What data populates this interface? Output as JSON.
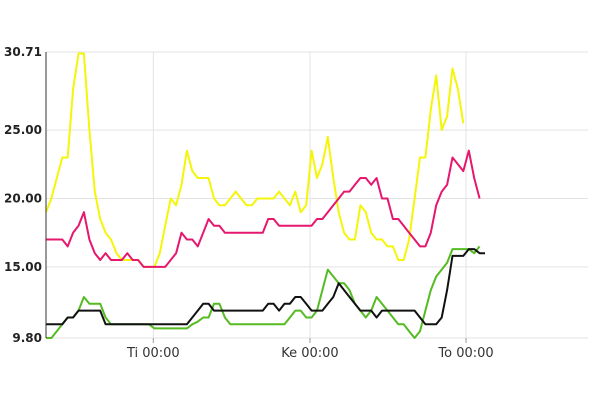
{
  "chart_data": {
    "type": "line",
    "grid": true,
    "ylim": [
      9.8,
      30.71
    ],
    "y_ticks": [
      "30.71",
      "25.00",
      "20.00",
      "15.00",
      "9.80"
    ],
    "y_tick_values": [
      30.71,
      25.0,
      20.0,
      15.0,
      9.8
    ],
    "xlim": [
      0,
      100
    ],
    "x_ticks": [
      {
        "label": "Ti 00:00",
        "x": 19.8
      },
      {
        "label": "Ke 00:00",
        "x": 48.7
      },
      {
        "label": "To 00:00",
        "x": 77.5
      }
    ],
    "series": [
      {
        "color": "#f5f50a",
        "points": [
          [
            0,
            19
          ],
          [
            1,
            20
          ],
          [
            2,
            21.5
          ],
          [
            3,
            23
          ],
          [
            4,
            23
          ],
          [
            5,
            28
          ],
          [
            6,
            30.6
          ],
          [
            7,
            30.6
          ],
          [
            8,
            25
          ],
          [
            9,
            20.5
          ],
          [
            10,
            18.5
          ],
          [
            11,
            17.5
          ],
          [
            12,
            17
          ],
          [
            13,
            16
          ],
          [
            14,
            15.5
          ],
          [
            15,
            15.5
          ],
          [
            16,
            15.5
          ],
          [
            17,
            15.5
          ],
          [
            18,
            15
          ],
          [
            19,
            15
          ],
          [
            20,
            15
          ],
          [
            21,
            16
          ],
          [
            22,
            18
          ],
          [
            23,
            20
          ],
          [
            24,
            19.5
          ],
          [
            25,
            21
          ],
          [
            26,
            23.5
          ],
          [
            27,
            22
          ],
          [
            28,
            21.5
          ],
          [
            29,
            21.5
          ],
          [
            30,
            21.5
          ],
          [
            31,
            20
          ],
          [
            32,
            19.5
          ],
          [
            33,
            19.5
          ],
          [
            34,
            20
          ],
          [
            35,
            20.5
          ],
          [
            36,
            20
          ],
          [
            37,
            19.5
          ],
          [
            38,
            19.5
          ],
          [
            39,
            20
          ],
          [
            40,
            20
          ],
          [
            41,
            20
          ],
          [
            42,
            20
          ],
          [
            43,
            20.5
          ],
          [
            44,
            20
          ],
          [
            45,
            19.5
          ],
          [
            46,
            20.5
          ],
          [
            47,
            19
          ],
          [
            48,
            19.5
          ],
          [
            49,
            23.5
          ],
          [
            50,
            21.5
          ],
          [
            51,
            22.5
          ],
          [
            52,
            24.5
          ],
          [
            53,
            21.5
          ],
          [
            54,
            19
          ],
          [
            55,
            17.5
          ],
          [
            56,
            17
          ],
          [
            57,
            17
          ],
          [
            58,
            19.5
          ],
          [
            59,
            19
          ],
          [
            60,
            17.5
          ],
          [
            61,
            17
          ],
          [
            62,
            17
          ],
          [
            63,
            16.5
          ],
          [
            64,
            16.5
          ],
          [
            65,
            15.5
          ],
          [
            66,
            15.5
          ],
          [
            67,
            17
          ],
          [
            68,
            20
          ],
          [
            69,
            23
          ],
          [
            70,
            23
          ],
          [
            71,
            26.5
          ],
          [
            72,
            29
          ],
          [
            73,
            25
          ],
          [
            74,
            26
          ],
          [
            75,
            29.5
          ],
          [
            76,
            28
          ],
          [
            77,
            25.5
          ]
        ]
      },
      {
        "color": "#e6176e",
        "points": [
          [
            0,
            17
          ],
          [
            1,
            17
          ],
          [
            2,
            17
          ],
          [
            3,
            17
          ],
          [
            4,
            16.5
          ],
          [
            5,
            17.5
          ],
          [
            6,
            18
          ],
          [
            7,
            19
          ],
          [
            8,
            17
          ],
          [
            9,
            16
          ],
          [
            10,
            15.5
          ],
          [
            11,
            16
          ],
          [
            12,
            15.5
          ],
          [
            13,
            15.5
          ],
          [
            14,
            15.5
          ],
          [
            15,
            16
          ],
          [
            16,
            15.5
          ],
          [
            17,
            15.5
          ],
          [
            18,
            15
          ],
          [
            19,
            15
          ],
          [
            20,
            15
          ],
          [
            21,
            15
          ],
          [
            22,
            15
          ],
          [
            23,
            15.5
          ],
          [
            24,
            16
          ],
          [
            25,
            17.5
          ],
          [
            26,
            17
          ],
          [
            27,
            17
          ],
          [
            28,
            16.5
          ],
          [
            29,
            17.5
          ],
          [
            30,
            18.5
          ],
          [
            31,
            18
          ],
          [
            32,
            18
          ],
          [
            33,
            17.5
          ],
          [
            34,
            17.5
          ],
          [
            35,
            17.5
          ],
          [
            36,
            17.5
          ],
          [
            37,
            17.5
          ],
          [
            38,
            17.5
          ],
          [
            39,
            17.5
          ],
          [
            40,
            17.5
          ],
          [
            41,
            18.5
          ],
          [
            42,
            18.5
          ],
          [
            43,
            18
          ],
          [
            44,
            18
          ],
          [
            45,
            18
          ],
          [
            46,
            18
          ],
          [
            47,
            18
          ],
          [
            48,
            18
          ],
          [
            49,
            18
          ],
          [
            50,
            18.5
          ],
          [
            51,
            18.5
          ],
          [
            52,
            19
          ],
          [
            53,
            19.5
          ],
          [
            54,
            20
          ],
          [
            55,
            20.5
          ],
          [
            56,
            20.5
          ],
          [
            57,
            21
          ],
          [
            58,
            21.5
          ],
          [
            59,
            21.5
          ],
          [
            60,
            21
          ],
          [
            61,
            21.5
          ],
          [
            62,
            20
          ],
          [
            63,
            20
          ],
          [
            64,
            18.5
          ],
          [
            65,
            18.5
          ],
          [
            66,
            18
          ],
          [
            67,
            17.5
          ],
          [
            68,
            17
          ],
          [
            69,
            16.5
          ],
          [
            70,
            16.5
          ],
          [
            71,
            17.5
          ],
          [
            72,
            19.5
          ],
          [
            73,
            20.5
          ],
          [
            74,
            21
          ],
          [
            75,
            23
          ],
          [
            76,
            22.5
          ],
          [
            77,
            22
          ],
          [
            78,
            23.5
          ],
          [
            79,
            21.5
          ],
          [
            80,
            20
          ]
        ]
      },
      {
        "color": "#55bb22",
        "points": [
          [
            0,
            9.8
          ],
          [
            1,
            9.8
          ],
          [
            2,
            10.3
          ],
          [
            3,
            10.8
          ],
          [
            4,
            11.3
          ],
          [
            5,
            11.3
          ],
          [
            6,
            11.8
          ],
          [
            7,
            12.8
          ],
          [
            8,
            12.3
          ],
          [
            9,
            12.3
          ],
          [
            10,
            12.3
          ],
          [
            11,
            11.3
          ],
          [
            12,
            10.8
          ],
          [
            13,
            10.8
          ],
          [
            14,
            10.8
          ],
          [
            15,
            10.8
          ],
          [
            16,
            10.8
          ],
          [
            17,
            10.8
          ],
          [
            18,
            10.8
          ],
          [
            19,
            10.8
          ],
          [
            20,
            10.5
          ],
          [
            21,
            10.5
          ],
          [
            22,
            10.5
          ],
          [
            23,
            10.5
          ],
          [
            24,
            10.5
          ],
          [
            25,
            10.5
          ],
          [
            26,
            10.5
          ],
          [
            27,
            10.8
          ],
          [
            28,
            11
          ],
          [
            29,
            11.3
          ],
          [
            30,
            11.3
          ],
          [
            31,
            12.3
          ],
          [
            32,
            12.3
          ],
          [
            33,
            11.3
          ],
          [
            34,
            10.8
          ],
          [
            35,
            10.8
          ],
          [
            36,
            10.8
          ],
          [
            37,
            10.8
          ],
          [
            38,
            10.8
          ],
          [
            39,
            10.8
          ],
          [
            40,
            10.8
          ],
          [
            41,
            10.8
          ],
          [
            42,
            10.8
          ],
          [
            43,
            10.8
          ],
          [
            44,
            10.8
          ],
          [
            45,
            11.3
          ],
          [
            46,
            11.8
          ],
          [
            47,
            11.8
          ],
          [
            48,
            11.3
          ],
          [
            49,
            11.3
          ],
          [
            50,
            11.8
          ],
          [
            51,
            13.3
          ],
          [
            52,
            14.8
          ],
          [
            53,
            14.3
          ],
          [
            54,
            13.8
          ],
          [
            55,
            13.8
          ],
          [
            56,
            13.3
          ],
          [
            57,
            12.3
          ],
          [
            58,
            11.8
          ],
          [
            59,
            11.3
          ],
          [
            60,
            11.8
          ],
          [
            61,
            12.8
          ],
          [
            62,
            12.3
          ],
          [
            63,
            11.8
          ],
          [
            64,
            11.3
          ],
          [
            65,
            10.8
          ],
          [
            66,
            10.8
          ],
          [
            67,
            10.3
          ],
          [
            68,
            9.8
          ],
          [
            69,
            10.3
          ],
          [
            70,
            11.8
          ],
          [
            71,
            13.3
          ],
          [
            72,
            14.3
          ],
          [
            73,
            14.8
          ],
          [
            74,
            15.3
          ],
          [
            75,
            16.3
          ],
          [
            76,
            16.3
          ],
          [
            77,
            16.3
          ],
          [
            78,
            16.3
          ],
          [
            79,
            16
          ],
          [
            80,
            16.5
          ]
        ]
      },
      {
        "color": "#111111",
        "points": [
          [
            0,
            10.8
          ],
          [
            1,
            10.8
          ],
          [
            2,
            10.8
          ],
          [
            3,
            10.8
          ],
          [
            4,
            11.3
          ],
          [
            5,
            11.3
          ],
          [
            6,
            11.8
          ],
          [
            7,
            11.8
          ],
          [
            8,
            11.8
          ],
          [
            9,
            11.8
          ],
          [
            10,
            11.8
          ],
          [
            11,
            10.8
          ],
          [
            12,
            10.8
          ],
          [
            13,
            10.8
          ],
          [
            14,
            10.8
          ],
          [
            15,
            10.8
          ],
          [
            16,
            10.8
          ],
          [
            17,
            10.8
          ],
          [
            18,
            10.8
          ],
          [
            19,
            10.8
          ],
          [
            20,
            10.8
          ],
          [
            21,
            10.8
          ],
          [
            22,
            10.8
          ],
          [
            23,
            10.8
          ],
          [
            24,
            10.8
          ],
          [
            25,
            10.8
          ],
          [
            26,
            10.8
          ],
          [
            27,
            11.3
          ],
          [
            28,
            11.8
          ],
          [
            29,
            12.3
          ],
          [
            30,
            12.3
          ],
          [
            31,
            11.8
          ],
          [
            32,
            11.8
          ],
          [
            33,
            11.8
          ],
          [
            34,
            11.8
          ],
          [
            35,
            11.8
          ],
          [
            36,
            11.8
          ],
          [
            37,
            11.8
          ],
          [
            38,
            11.8
          ],
          [
            39,
            11.8
          ],
          [
            40,
            11.8
          ],
          [
            41,
            12.3
          ],
          [
            42,
            12.3
          ],
          [
            43,
            11.8
          ],
          [
            44,
            12.3
          ],
          [
            45,
            12.3
          ],
          [
            46,
            12.8
          ],
          [
            47,
            12.8
          ],
          [
            48,
            12.3
          ],
          [
            49,
            11.8
          ],
          [
            50,
            11.8
          ],
          [
            51,
            11.8
          ],
          [
            52,
            12.3
          ],
          [
            53,
            12.8
          ],
          [
            54,
            13.8
          ],
          [
            55,
            13.3
          ],
          [
            56,
            12.8
          ],
          [
            57,
            12.3
          ],
          [
            58,
            11.8
          ],
          [
            59,
            11.8
          ],
          [
            60,
            11.8
          ],
          [
            61,
            11.3
          ],
          [
            62,
            11.8
          ],
          [
            63,
            11.8
          ],
          [
            64,
            11.8
          ],
          [
            65,
            11.8
          ],
          [
            66,
            11.8
          ],
          [
            67,
            11.8
          ],
          [
            68,
            11.8
          ],
          [
            69,
            11.3
          ],
          [
            70,
            10.8
          ],
          [
            71,
            10.8
          ],
          [
            72,
            10.8
          ],
          [
            73,
            11.3
          ],
          [
            74,
            13.3
          ],
          [
            75,
            15.8
          ],
          [
            76,
            15.8
          ],
          [
            77,
            15.8
          ],
          [
            78,
            16.3
          ],
          [
            79,
            16.3
          ],
          [
            80,
            16
          ],
          [
            81,
            16
          ]
        ]
      }
    ]
  }
}
